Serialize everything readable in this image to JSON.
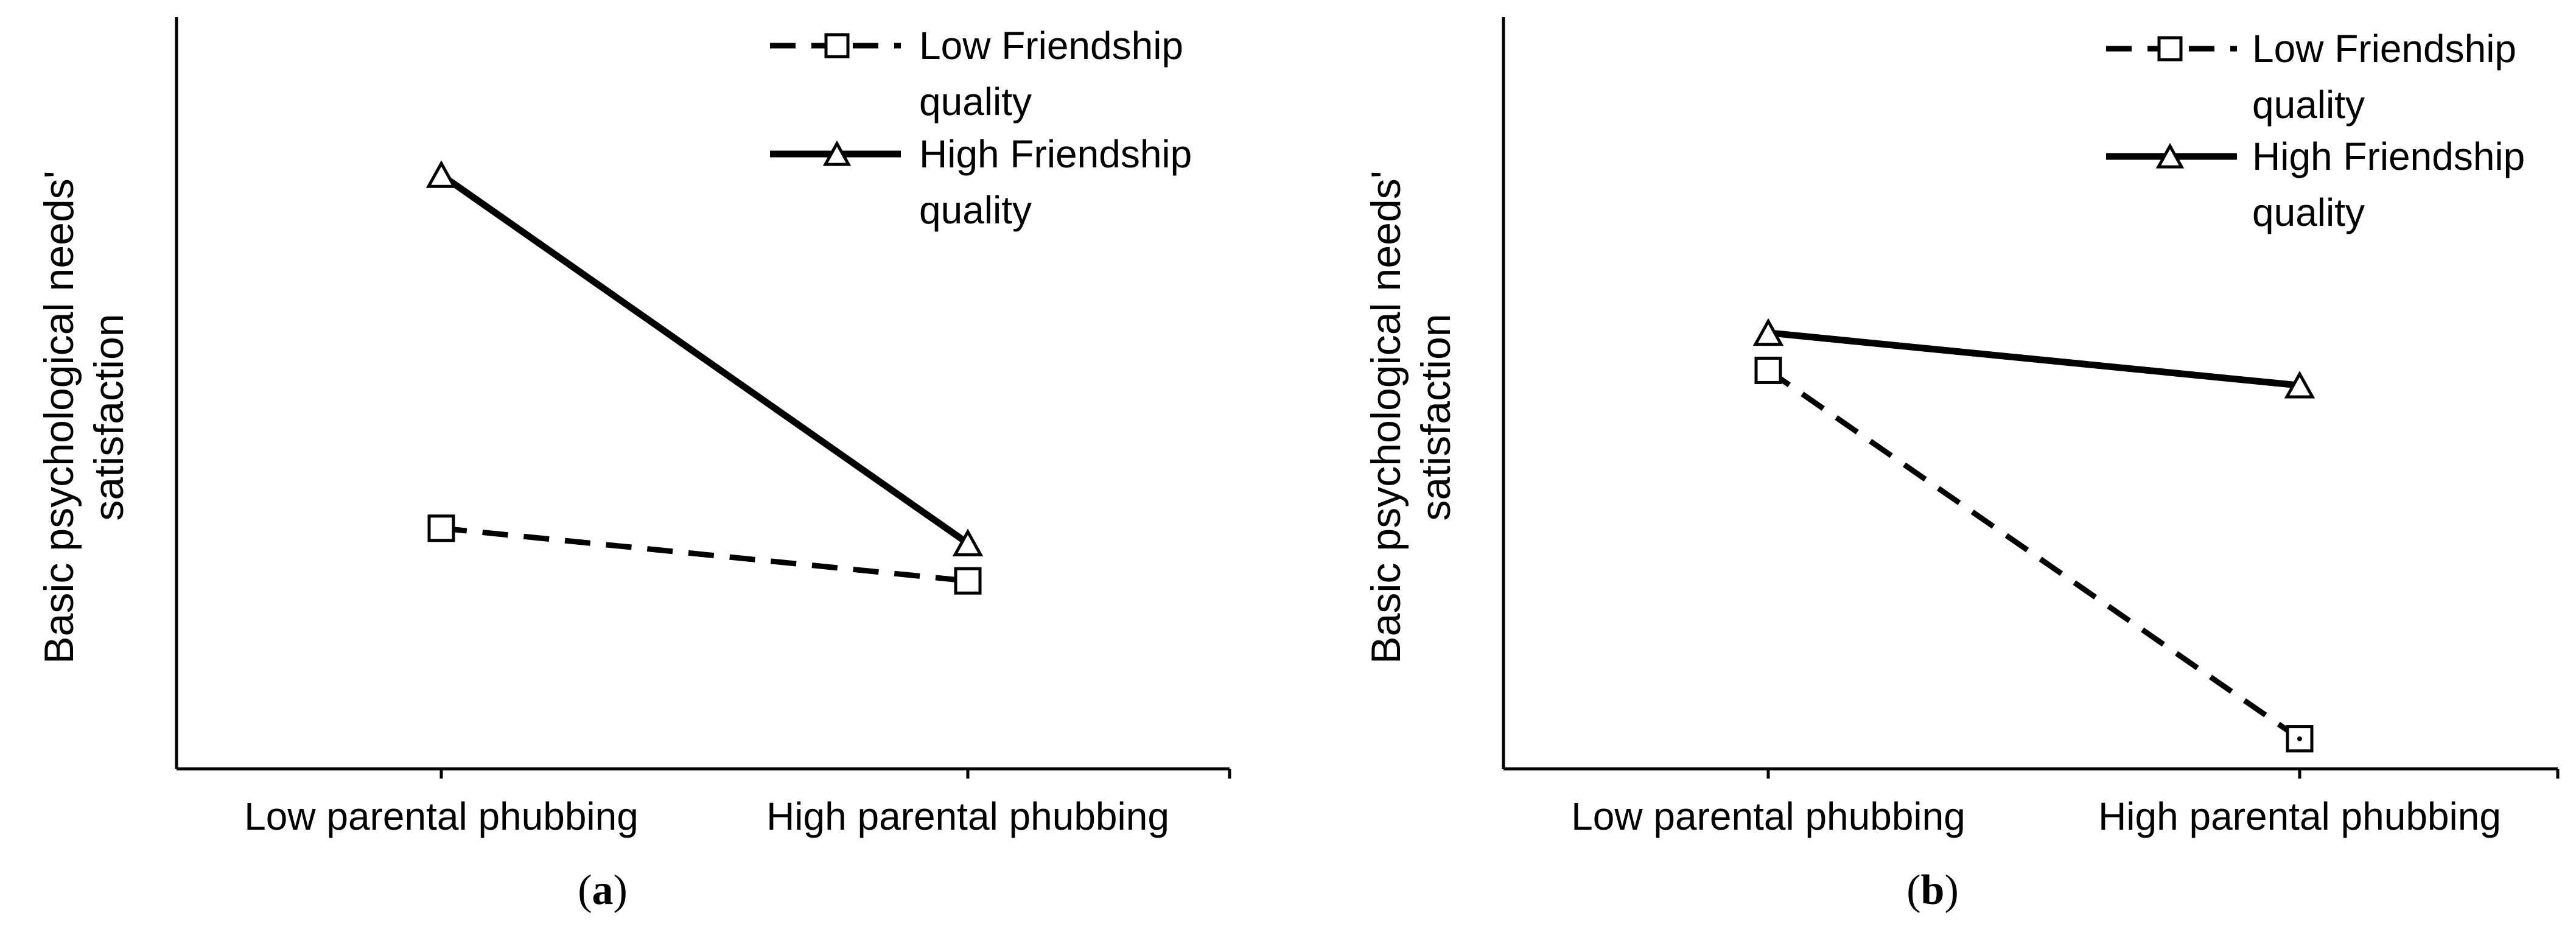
{
  "chart_data": [
    {
      "type": "line",
      "panel_label": "(a)",
      "ylabel": "Basic psychological needs' satisfaction",
      "categories": [
        "Low parental phubbing",
        "High parental phubbing"
      ],
      "ylim": [
        0,
        10
      ],
      "grid": false,
      "legend_position": "top-right",
      "series": [
        {
          "name": "Low Friendship quality",
          "line_style": "dashed",
          "marker": "square",
          "values": [
            3.2,
            2.5
          ]
        },
        {
          "name": "High Friendship quality",
          "line_style": "solid",
          "marker": "triangle",
          "values": [
            7.9,
            3.0
          ]
        }
      ]
    },
    {
      "type": "line",
      "panel_label": "(b)",
      "ylabel": "Basic psychological needs' satisfaction",
      "categories": [
        "Low parental phubbing",
        "High parental phubbing"
      ],
      "ylim": [
        0,
        10
      ],
      "grid": false,
      "legend_position": "top-right",
      "series": [
        {
          "name": "Low Friendship quality",
          "line_style": "dashed",
          "marker": "square",
          "values": [
            5.3,
            0.4
          ]
        },
        {
          "name": "High Friendship quality",
          "line_style": "solid",
          "marker": "triangle",
          "values": [
            5.8,
            5.1
          ]
        }
      ]
    }
  ]
}
